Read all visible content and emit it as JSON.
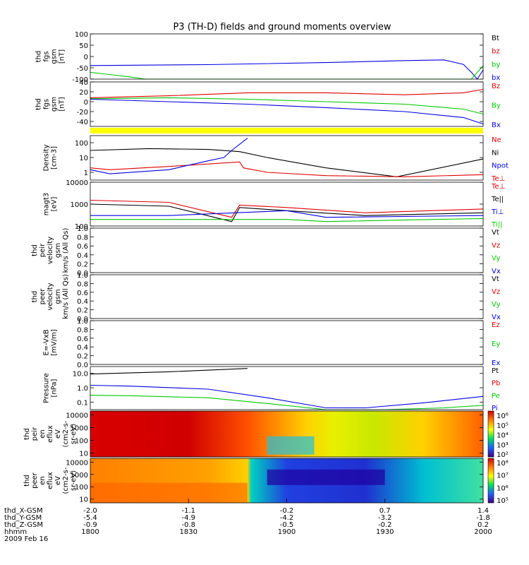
{
  "title": "P3 (TH-D) fields and ground moments overview",
  "chart_data": [
    {
      "type": "line",
      "ylabel": [
        "thd",
        "fgs",
        "gsm",
        "[nT]"
      ],
      "ylim": [
        -100,
        100
      ],
      "yticks": [
        -100,
        -50,
        0,
        50,
        100
      ],
      "legend": [
        "Bt",
        "bz",
        "by",
        "bx"
      ],
      "series": [
        {
          "name": "bx",
          "x": [
            0,
            0.3,
            0.6,
            0.8,
            0.9,
            0.95,
            0.97,
            0.985,
            1.0
          ],
          "values": [
            -40,
            -36,
            -27,
            -18,
            -15,
            -35,
            -70,
            -100,
            -60
          ]
        },
        {
          "name": "by",
          "x": [
            0,
            0.04,
            0.1,
            0.14,
            0.97,
            0.99,
            1.0
          ],
          "values": [
            -70,
            -78,
            -90,
            -100,
            -100,
            -60,
            -40
          ]
        }
      ]
    },
    {
      "type": "line",
      "ylabel": [
        "thd",
        "fgs",
        "gsm",
        "[nT]"
      ],
      "ylim": [
        -50,
        40
      ],
      "yticks": [
        -40,
        -20,
        0,
        20,
        40
      ],
      "legend": [
        "Bz",
        "By",
        "Bx"
      ],
      "series": [
        {
          "name": "Bz",
          "x": [
            0,
            0.2,
            0.4,
            0.6,
            0.8,
            0.95,
            1.0
          ],
          "values": [
            8,
            12,
            18,
            18,
            14,
            18,
            25
          ]
        },
        {
          "name": "By",
          "x": [
            0,
            0.2,
            0.4,
            0.6,
            0.8,
            0.95,
            1.0
          ],
          "values": [
            6,
            8,
            5,
            0,
            -5,
            -15,
            -25
          ]
        },
        {
          "name": "Bx",
          "x": [
            0,
            0.2,
            0.4,
            0.6,
            0.8,
            0.95,
            1.0
          ],
          "values": [
            5,
            0,
            -5,
            -12,
            -20,
            -32,
            -45
          ]
        }
      ]
    },
    {
      "type": "line",
      "scale": "log",
      "ylabel": [
        "Density",
        "[cm-3]"
      ],
      "ylim": [
        0.3,
        300
      ],
      "yticks": [
        "1",
        "10",
        "100"
      ],
      "legend": [
        "Ne",
        "Ni",
        "Npot",
        "Te⊥"
      ],
      "series": [
        {
          "name": "Ni",
          "x": [
            0,
            0.15,
            0.3,
            0.38,
            0.45,
            0.6,
            0.78,
            1.0
          ],
          "values": [
            30,
            40,
            35,
            25,
            10,
            2,
            0.5,
            8
          ]
        },
        {
          "name": "Ne",
          "x": [
            0,
            0.05,
            0.2,
            0.38,
            0.39,
            0.45,
            0.6,
            0.8,
            1.0
          ],
          "values": [
            2,
            1.5,
            2.5,
            5,
            2,
            1,
            0.6,
            0.5,
            0.7
          ]
        },
        {
          "name": "Npot",
          "x": [
            0,
            0.05,
            0.2,
            0.3,
            0.34,
            0.36,
            0.4
          ],
          "values": [
            1.5,
            0.8,
            1.5,
            6,
            10,
            30,
            200
          ]
        }
      ]
    },
    {
      "type": "line",
      "scale": "log",
      "ylabel": [
        "magt3",
        "[eV]"
      ],
      "ylim": [
        100,
        10000
      ],
      "yticks": [
        "100",
        "1000",
        "10000"
      ],
      "legend": [
        "Te⊥",
        "Te||",
        "Ti⊥",
        "Ti||"
      ],
      "series": [
        {
          "name": "Te⊥",
          "x": [
            0,
            0.2,
            0.36,
            0.38,
            0.5,
            0.7,
            1.0
          ],
          "values": [
            1500,
            1200,
            250,
            900,
            700,
            400,
            600
          ]
        },
        {
          "name": "Te||",
          "x": [
            0,
            0.2,
            0.36,
            0.38,
            0.5,
            0.7,
            1.0
          ],
          "values": [
            1000,
            800,
            160,
            700,
            500,
            300,
            400
          ]
        },
        {
          "name": "Ti⊥",
          "x": [
            0,
            0.2,
            0.5,
            0.6,
            1.0
          ],
          "values": [
            300,
            300,
            500,
            250,
            300
          ]
        },
        {
          "name": "Ti||",
          "x": [
            0,
            0.5,
            0.6,
            1.0
          ],
          "values": [
            200,
            200,
            160,
            220
          ]
        }
      ]
    },
    {
      "type": "line",
      "ylabel": [
        "thd",
        "peir",
        "velocity",
        "gsm",
        "km/s (All Qs)"
      ],
      "ylim": [
        0,
        1
      ],
      "yticks": [
        "0.0",
        "0.2",
        "0.4",
        "0.6",
        "0.8",
        "1.0"
      ],
      "legend": [
        "Vt",
        "Vz",
        "Vy",
        "Vx"
      ],
      "series": []
    },
    {
      "type": "line",
      "ylabel": [
        "thd",
        "peer",
        "velocity",
        "gsm",
        "km/s (All Qs)"
      ],
      "ylim": [
        0,
        1
      ],
      "yticks": [
        "0.0",
        "0.2",
        "0.4",
        "0.6",
        "0.8",
        "1.0"
      ],
      "legend": [
        "Vt",
        "Vz",
        "Vy",
        "Vx"
      ],
      "series": []
    },
    {
      "type": "line",
      "ylabel": [
        "E=-VxB",
        "[mV/m]"
      ],
      "ylim": [
        0,
        1
      ],
      "yticks": [
        "0.0",
        "0.2",
        "0.4",
        "0.6",
        "0.8",
        "1.0"
      ],
      "legend": [
        "Ez",
        "Ey",
        "Ex"
      ],
      "series": []
    },
    {
      "type": "line",
      "scale": "log",
      "ylabel": [
        "Pressure",
        "[nPa]"
      ],
      "ylim": [
        0.03,
        30
      ],
      "yticks": [
        "0.1",
        "1.0",
        "10.0"
      ],
      "legend": [
        "Pt",
        "Pb",
        "Pe",
        "Pi"
      ],
      "series": [
        {
          "name": "Pt",
          "x": [
            0,
            0.2,
            0.4
          ],
          "values": [
            9,
            13,
            22
          ]
        },
        {
          "name": "Pi",
          "x": [
            0,
            0.1,
            0.3,
            0.45,
            0.6,
            0.7,
            0.85,
            1.0
          ],
          "values": [
            1.5,
            1.3,
            0.8,
            0.2,
            0.04,
            0.04,
            0.09,
            0.25
          ]
        },
        {
          "name": "Pe",
          "x": [
            0,
            0.1,
            0.3,
            0.45,
            0.6,
            0.75,
            0.9,
            1.0
          ],
          "values": [
            0.3,
            0.28,
            0.2,
            0.08,
            0.03,
            0.03,
            0.04,
            0.06
          ]
        }
      ]
    },
    {
      "type": "heatmap",
      "ylabel": [
        "thd",
        "peir",
        "en",
        "eflux",
        "eV",
        "(cm2-s-",
        "sr-eV)"
      ],
      "ylim": [
        5,
        20000
      ],
      "yticks": [
        "10",
        "100",
        "1000",
        "10000"
      ],
      "colorbar_ticks": [
        "10⁶",
        "10⁵",
        "10⁴",
        "10³",
        "10²"
      ]
    },
    {
      "type": "heatmap",
      "ylabel": [
        "thd",
        "peer",
        "en",
        "eflux",
        "eV",
        "(cm2-s-",
        "sr-eV)"
      ],
      "ylim": [
        5,
        20000
      ],
      "yticks": [
        "10",
        "100",
        "1000",
        "10000"
      ],
      "colorbar_ticks": [
        "10⁸",
        "10⁷",
        "10⁶",
        "10⁵"
      ]
    }
  ],
  "colors": {
    "Bt": "#000000",
    "bz": "#e00000",
    "by": "#00c800",
    "bx": "#0000e0",
    "Bz": "#e00000",
    "By": "#00c800",
    "Bx": "#0000e0",
    "Ne": "#e00000",
    "Ni": "#000000",
    "Npot": "#0000e0",
    "Te⊥": "#e00000",
    "Te||": "#000000",
    "Ti⊥": "#0000e0",
    "Ti||": "#00c800",
    "Vt": "#000000",
    "Vz": "#e00000",
    "Vy": "#00c800",
    "Vx": "#0000e0",
    "Ez": "#e00000",
    "Ey": "#00c800",
    "Ex": "#0000e0",
    "Pt": "#000000",
    "Pb": "#e00000",
    "Pe": "#00c800",
    "Pi": "#0000e0"
  },
  "xaxis": {
    "rows": [
      {
        "label": "thd_X-GSM",
        "ticks": [
          "-2.0",
          "-1.1",
          "-0.2",
          "0.7",
          "1.4"
        ]
      },
      {
        "label": "thd_Y-GSM",
        "ticks": [
          "-5.4",
          "-4.9",
          "-4.2",
          "-3.2",
          "-1.8"
        ]
      },
      {
        "label": "thd_Z-GSM",
        "ticks": [
          "-0.9",
          "-0.8",
          "-0.5",
          "-0.2",
          "0.2"
        ]
      },
      {
        "label": "hhmm",
        "ticks": [
          "1800",
          "1830",
          "1900",
          "1930",
          "2000"
        ]
      }
    ],
    "date": "2009 Feb 16"
  }
}
